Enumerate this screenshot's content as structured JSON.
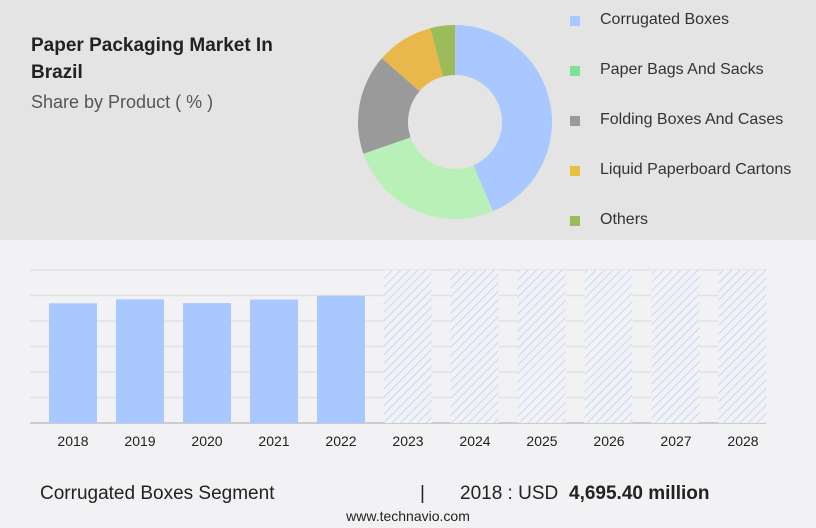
{
  "title": "Paper Packaging Market In Brazil",
  "subtitle": "Share by Product ( % )",
  "footer": {
    "segment": "Corrugated Boxes Segment",
    "separator": "|",
    "year_label": "2018 : USD",
    "value": "4,695.40 million"
  },
  "website": "www.technavio.com",
  "chart_data": [
    {
      "type": "pie",
      "donut": true,
      "legend_position": "right",
      "labels": [
        "Corrugated Boxes",
        "Paper Bags And Sacks",
        "Folding Boxes And Cases",
        "Liquid Paperboard Cartons",
        "Others"
      ],
      "values": [
        43.6,
        26.1,
        16.7,
        9.5,
        4.1
      ],
      "colors": [
        "#a8c8ff",
        "#b8f0b8",
        "#9a9a9a",
        "#e8b84a",
        "#9cbb5a"
      ],
      "legend_colors": [
        "#a8c8ff",
        "#7fe09a",
        "#9a9a9a",
        "#e8c040",
        "#9cbb5a"
      ]
    },
    {
      "type": "bar",
      "grid": true,
      "ylim": [
        0,
        6000
      ],
      "categories": [
        "2018",
        "2019",
        "2020",
        "2021",
        "2022",
        "2023",
        "2024",
        "2025",
        "2026",
        "2027",
        "2028"
      ],
      "values": [
        4695.4,
        4850,
        4700,
        4840,
        4990,
        null,
        null,
        null,
        null,
        null,
        null
      ],
      "forecast": [
        false,
        false,
        false,
        false,
        false,
        true,
        true,
        true,
        true,
        true,
        true
      ],
      "color": "#a8c8ff"
    }
  ]
}
